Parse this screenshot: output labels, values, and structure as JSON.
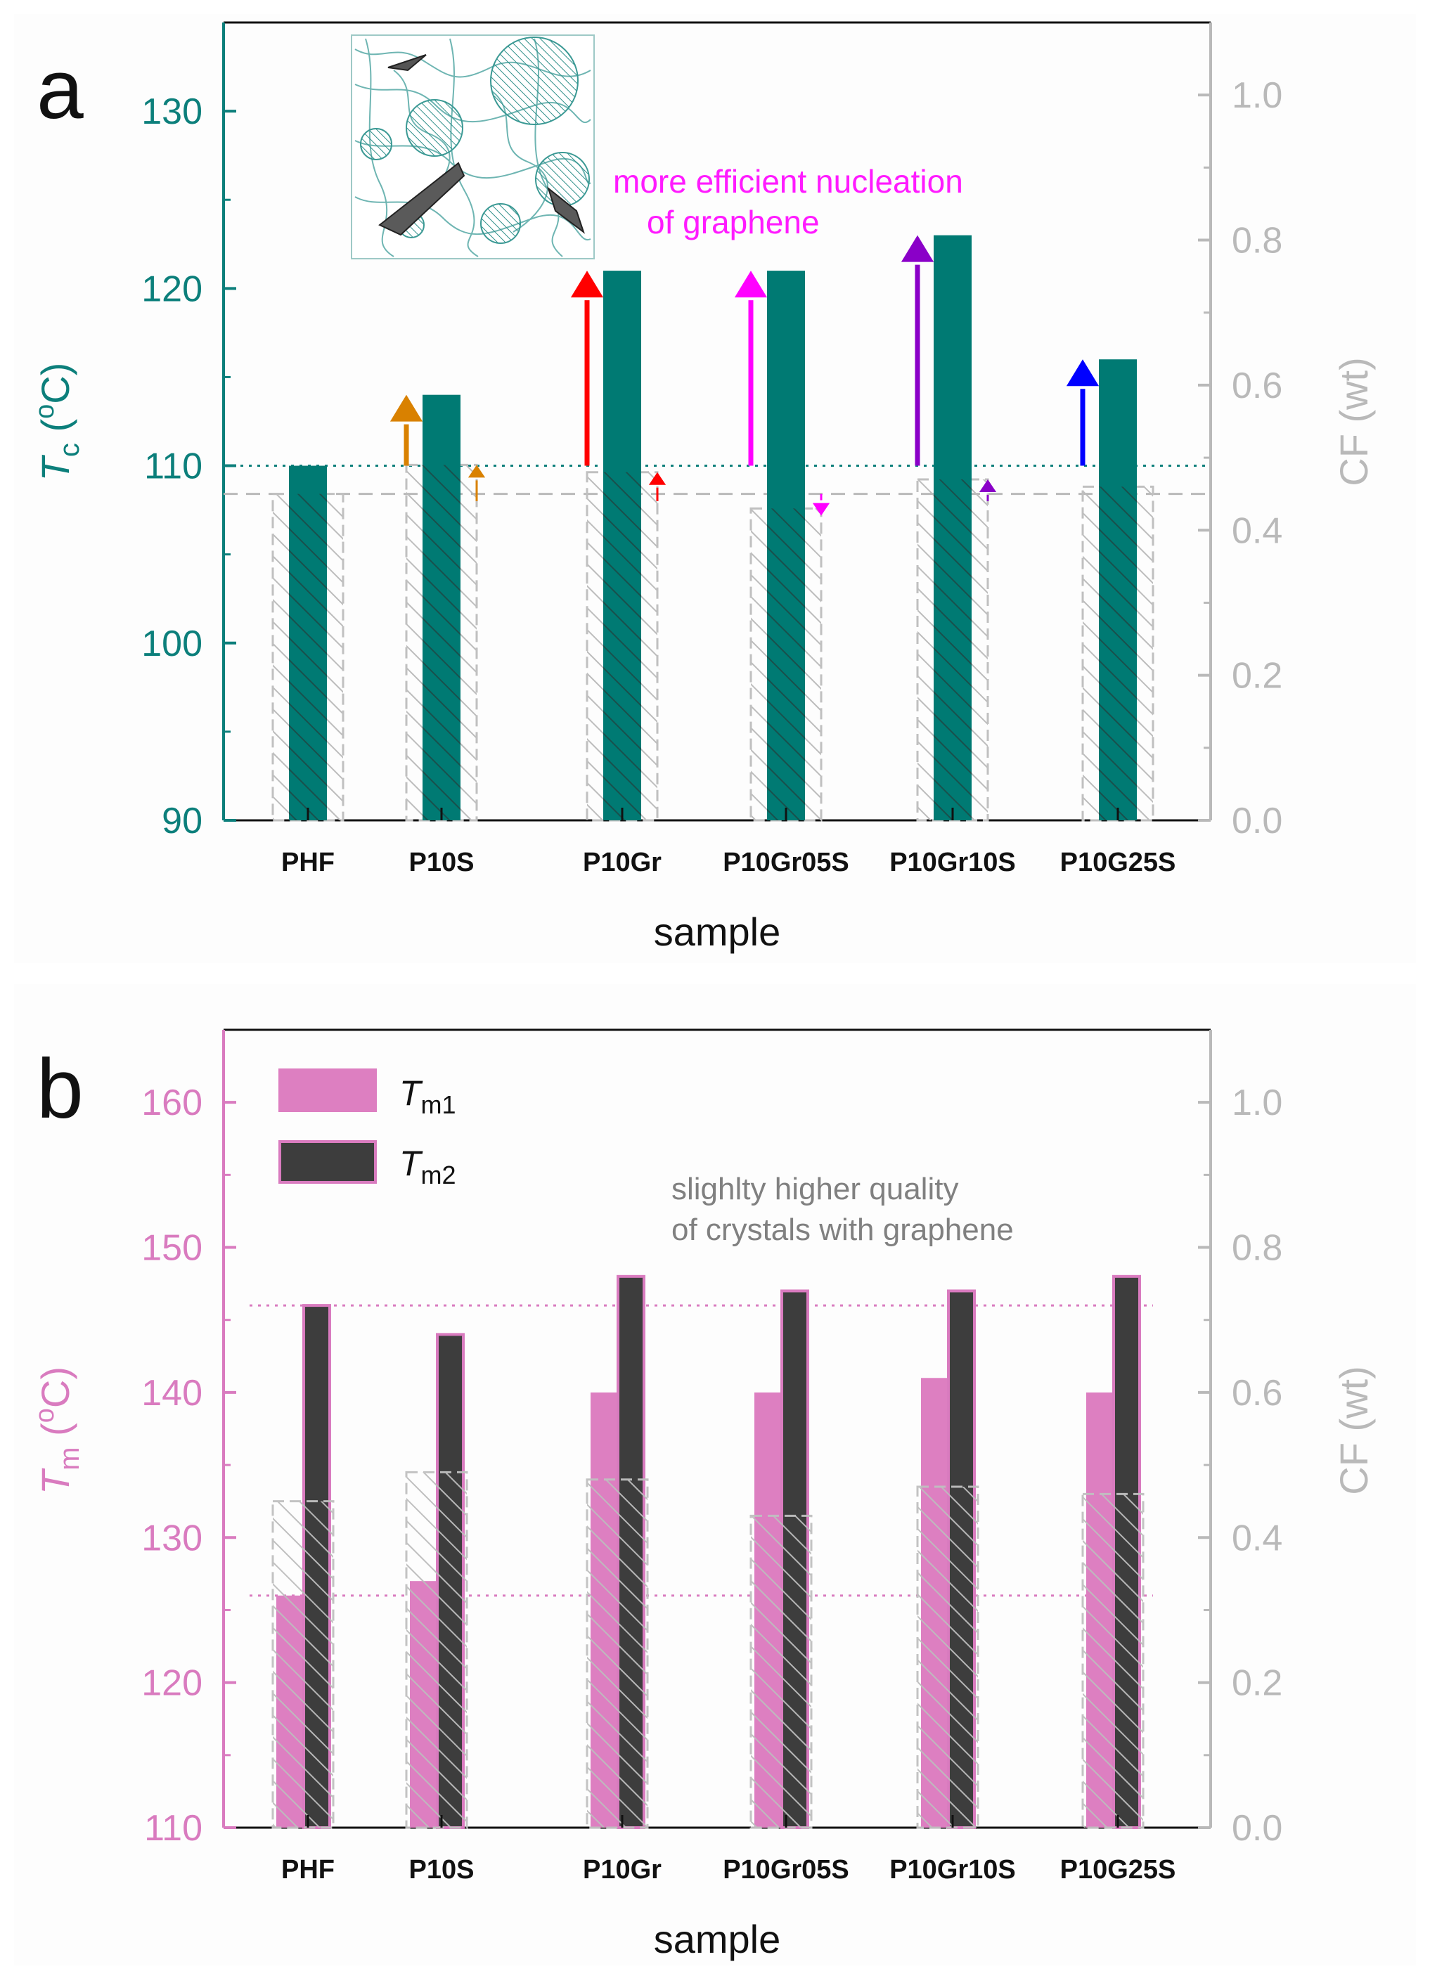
{
  "chart_data": [
    {
      "panel": "a",
      "type": "bar",
      "xlabel": "sample",
      "ylabel_left": "T_c (°C)",
      "ylabel_left_main": "T",
      "ylabel_left_sub": "c",
      "ylabel_left_unit_open": " (",
      "ylabel_left_sup": "o",
      "ylabel_left_unit_close": "C)",
      "ylabel_right": "CF (wt)",
      "ylim_left": [
        90,
        135
      ],
      "ylim_right": [
        0.0,
        1.1
      ],
      "yticks_left": [
        90,
        100,
        110,
        120,
        130
      ],
      "yticks_right": [
        "0.0",
        "0.2",
        "0.4",
        "0.6",
        "0.8",
        "1.0"
      ],
      "categories": [
        "PHF",
        "P10S",
        "P10Gr",
        "P10Gr05S",
        "P10Gr10S",
        "P10G25S"
      ],
      "series": [
        {
          "name": "Tc",
          "axis": "left",
          "color": "#007a73",
          "values": [
            110,
            114,
            121,
            121,
            123,
            116
          ]
        },
        {
          "name": "CF",
          "axis": "right",
          "pattern": "hatched-gray",
          "values": [
            0.45,
            0.49,
            0.48,
            0.43,
            0.47,
            0.46
          ]
        }
      ],
      "reference_lines": [
        {
          "axis": "left",
          "value": 110,
          "style": "dotted",
          "color": "#0c7f7b"
        },
        {
          "axis": "right",
          "value": 0.45,
          "style": "dashed",
          "color": "#b9b9b9"
        }
      ],
      "arrows": [
        {
          "category": "P10S",
          "axis": "left",
          "from": 110,
          "to": 114,
          "color": "#d98100",
          "direction": "up"
        },
        {
          "category": "P10Gr",
          "axis": "left",
          "from": 110,
          "to": 121,
          "color": "#ff0000",
          "direction": "up"
        },
        {
          "category": "P10Gr05S",
          "axis": "left",
          "from": 110,
          "to": 121,
          "color": "#ff00ff",
          "direction": "up"
        },
        {
          "category": "P10Gr10S",
          "axis": "left",
          "from": 110,
          "to": 123,
          "color": "#8a00c8",
          "direction": "up"
        },
        {
          "category": "P10G25S",
          "axis": "left",
          "from": 110,
          "to": 116,
          "color": "#0000ff",
          "direction": "up"
        },
        {
          "category": "P10S",
          "axis": "right",
          "from": 0.44,
          "to": 0.49,
          "color": "#d98100",
          "direction": "up"
        },
        {
          "category": "P10Gr",
          "axis": "right",
          "from": 0.44,
          "to": 0.48,
          "color": "#ff0000",
          "direction": "up"
        },
        {
          "category": "P10Gr05S",
          "axis": "right",
          "from": 0.45,
          "to": 0.42,
          "color": "#ff00ff",
          "direction": "down"
        },
        {
          "category": "P10Gr10S",
          "axis": "right",
          "from": 0.44,
          "to": 0.47,
          "color": "#8a00c8",
          "direction": "up"
        }
      ],
      "annotation": [
        "more efficient nucleation",
        "of graphene"
      ],
      "inset_image": "polymer-graphene-morphology-sketch"
    },
    {
      "panel": "b",
      "type": "bar",
      "xlabel": "sample",
      "ylabel_left": "T_m (°C)",
      "ylabel_left_main": "T",
      "ylabel_left_sub": "m",
      "ylabel_left_unit_open": " (",
      "ylabel_left_sup": "o",
      "ylabel_left_unit_close": "C)",
      "ylabel_right": "CF (wt)",
      "ylim_left": [
        110,
        165
      ],
      "ylim_right": [
        0.0,
        1.1
      ],
      "yticks_left": [
        110,
        120,
        130,
        140,
        150,
        160
      ],
      "yticks_right": [
        "0.0",
        "0.2",
        "0.4",
        "0.6",
        "0.8",
        "1.0"
      ],
      "categories": [
        "PHF",
        "P10S",
        "P10Gr",
        "P10Gr05S",
        "P10Gr10S",
        "P10G25S"
      ],
      "series": [
        {
          "name": "Tm1",
          "label_main": "T",
          "label_sub": "m1",
          "axis": "left",
          "color": "#dd7fc1",
          "values": [
            126,
            127,
            140,
            140,
            141,
            140
          ]
        },
        {
          "name": "Tm2",
          "label_main": "T",
          "label_sub": "m2",
          "axis": "left",
          "color": "#3d3d3d",
          "values": [
            146,
            144,
            148,
            147,
            147,
            148
          ]
        },
        {
          "name": "CF",
          "axis": "right",
          "pattern": "hatched-gray",
          "values": [
            0.45,
            0.49,
            0.48,
            0.43,
            0.47,
            0.46
          ]
        }
      ],
      "reference_lines": [
        {
          "axis": "left",
          "value": 146,
          "style": "dotted",
          "color": "#d97bbf"
        },
        {
          "axis": "left",
          "value": 126,
          "style": "dotted",
          "color": "#d97bbf"
        }
      ],
      "annotation": [
        "slighlty higher quality",
        "of crystals with graphene"
      ]
    }
  ]
}
